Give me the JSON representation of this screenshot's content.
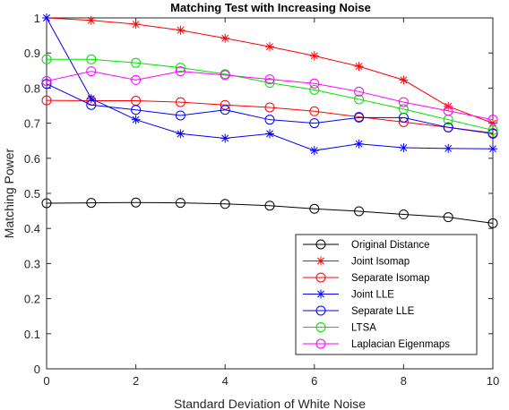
{
  "chart_data": {
    "type": "line",
    "title": "Matching Test with Increasing Noise",
    "xlabel": "Standard Deviation of White Noise",
    "ylabel": "Matching Power",
    "xlim": [
      0,
      10
    ],
    "ylim": [
      0,
      1
    ],
    "xticks": [
      "0",
      "2",
      "4",
      "6",
      "8",
      "10"
    ],
    "yticks": [
      "0",
      "0.1",
      "0.2",
      "0.3",
      "0.4",
      "0.5",
      "0.6",
      "0.7",
      "0.8",
      "0.9",
      "1"
    ],
    "grid": false,
    "legend_position": "bottom-right",
    "x": [
      0,
      1,
      2,
      3,
      4,
      5,
      6,
      7,
      8,
      9,
      10
    ],
    "series": [
      {
        "name": "Original Distance",
        "color": "#000000",
        "marker": "circle",
        "values": [
          0.472,
          0.473,
          0.474,
          0.473,
          0.47,
          0.465,
          0.456,
          0.449,
          0.44,
          0.432,
          0.415
        ]
      },
      {
        "name": "Joint Isomap",
        "color": "#ff0000",
        "marker": "star",
        "values": [
          1.0,
          0.993,
          0.982,
          0.965,
          0.942,
          0.918,
          0.892,
          0.862,
          0.823,
          0.748,
          0.7
        ]
      },
      {
        "name": "Separate Isomap",
        "color": "#ff0000",
        "marker": "circle",
        "values": [
          0.765,
          0.764,
          0.764,
          0.76,
          0.752,
          0.745,
          0.734,
          0.718,
          0.703,
          0.688,
          0.672
        ]
      },
      {
        "name": "Joint LLE",
        "color": "#0000ff",
        "marker": "star",
        "values": [
          1.0,
          0.77,
          0.71,
          0.67,
          0.657,
          0.67,
          0.622,
          0.641,
          0.63,
          0.628,
          0.627
        ]
      },
      {
        "name": "Separate LLE",
        "color": "#0000ff",
        "marker": "circle",
        "values": [
          0.812,
          0.752,
          0.738,
          0.722,
          0.738,
          0.71,
          0.7,
          0.716,
          0.716,
          0.688,
          0.67
        ]
      },
      {
        "name": "LTSA",
        "color": "#00e000",
        "marker": "circle",
        "values": [
          0.882,
          0.882,
          0.872,
          0.858,
          0.84,
          0.815,
          0.795,
          0.768,
          0.74,
          0.71,
          0.68
        ]
      },
      {
        "name": "Laplacian Eigenmaps",
        "color": "#ff00ff",
        "marker": "circle",
        "values": [
          0.82,
          0.848,
          0.823,
          0.848,
          0.837,
          0.825,
          0.813,
          0.79,
          0.76,
          0.735,
          0.71
        ]
      }
    ]
  }
}
